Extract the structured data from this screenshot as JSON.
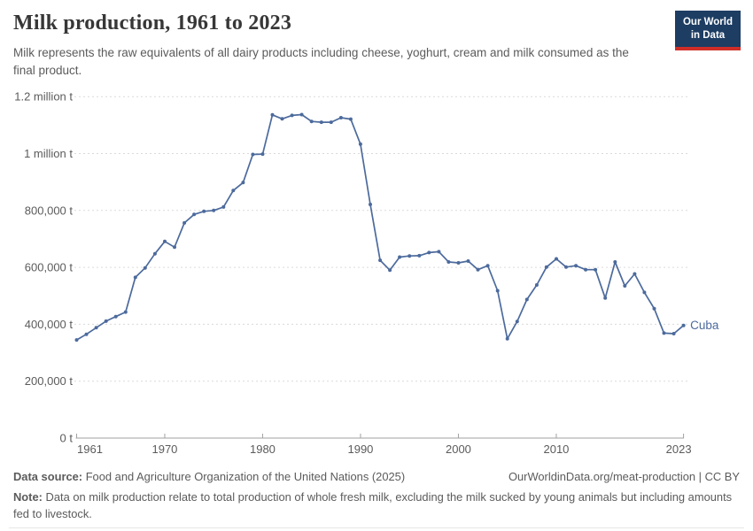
{
  "header": {
    "title": "Milk production, 1961 to 2023",
    "subtitle": "Milk represents the raw equivalents of all dairy products including cheese, yoghurt, cream and milk consumed as the final product.",
    "logo": {
      "line1": "Our World",
      "line2": "in Data"
    }
  },
  "chart_data": {
    "type": "line",
    "title": "Milk production, 1961 to 2023",
    "xlabel": "",
    "ylabel": "",
    "unit": "t",
    "grid": true,
    "ylim": [
      0,
      1200000
    ],
    "line_color": "#4c6a9c",
    "entity_label": "Cuba",
    "yticks": [
      {
        "value": 0,
        "label": "0 t"
      },
      {
        "value": 200000,
        "label": "200,000 t"
      },
      {
        "value": 400000,
        "label": "400,000 t"
      },
      {
        "value": 600000,
        "label": "600,000 t"
      },
      {
        "value": 800000,
        "label": "800,000 t"
      },
      {
        "value": 1000000,
        "label": "1 million t"
      },
      {
        "value": 1200000,
        "label": "1.2 million t"
      }
    ],
    "xticks": [
      1961,
      1970,
      1980,
      1990,
      2000,
      2010,
      2023
    ],
    "x": [
      1961,
      1962,
      1963,
      1964,
      1965,
      1966,
      1967,
      1968,
      1969,
      1970,
      1971,
      1972,
      1973,
      1974,
      1975,
      1976,
      1977,
      1978,
      1979,
      1980,
      1981,
      1982,
      1983,
      1984,
      1985,
      1986,
      1987,
      1988,
      1989,
      1990,
      1991,
      1992,
      1993,
      1994,
      1995,
      1996,
      1997,
      1998,
      1999,
      2000,
      2001,
      2002,
      2003,
      2004,
      2005,
      2006,
      2007,
      2008,
      2009,
      2010,
      2011,
      2012,
      2013,
      2014,
      2015,
      2016,
      2017,
      2018,
      2019,
      2020,
      2021,
      2022,
      2023
    ],
    "series": [
      {
        "name": "Cuba",
        "values": [
          345000,
          365000,
          388000,
          411000,
          427000,
          443000,
          565000,
          598000,
          648000,
          691000,
          671000,
          756000,
          786000,
          797000,
          800000,
          812000,
          870000,
          898000,
          997000,
          998000,
          1136000,
          1122000,
          1134000,
          1137000,
          1113000,
          1110000,
          1110000,
          1126000,
          1121000,
          1033000,
          821000,
          625000,
          590000,
          636000,
          640000,
          641000,
          652000,
          655000,
          619000,
          616000,
          622000,
          592000,
          606000,
          518000,
          349000,
          410000,
          487000,
          538000,
          601000,
          630000,
          601000,
          606000,
          592000,
          592000,
          492000,
          619000,
          535000,
          577000,
          512000,
          455000,
          369000,
          367000,
          396000
        ]
      }
    ]
  },
  "footer": {
    "data_source_label": "Data source:",
    "data_source": "Food and Agriculture Organization of the United Nations (2025)",
    "link": "OurWorldinData.org/meat-production | CC BY",
    "note_label": "Note:",
    "note": "Data on milk production relate to total production of whole fresh milk, excluding the milk sucked by young animals but including amounts fed to livestock."
  },
  "colors": {
    "line": "#4c6a9c",
    "grid": "#dadada",
    "axis": "#a1a1a1",
    "tick_text": "#5b5b5b",
    "logo_bg": "#1d3d63",
    "logo_red": "#cf2d27"
  }
}
